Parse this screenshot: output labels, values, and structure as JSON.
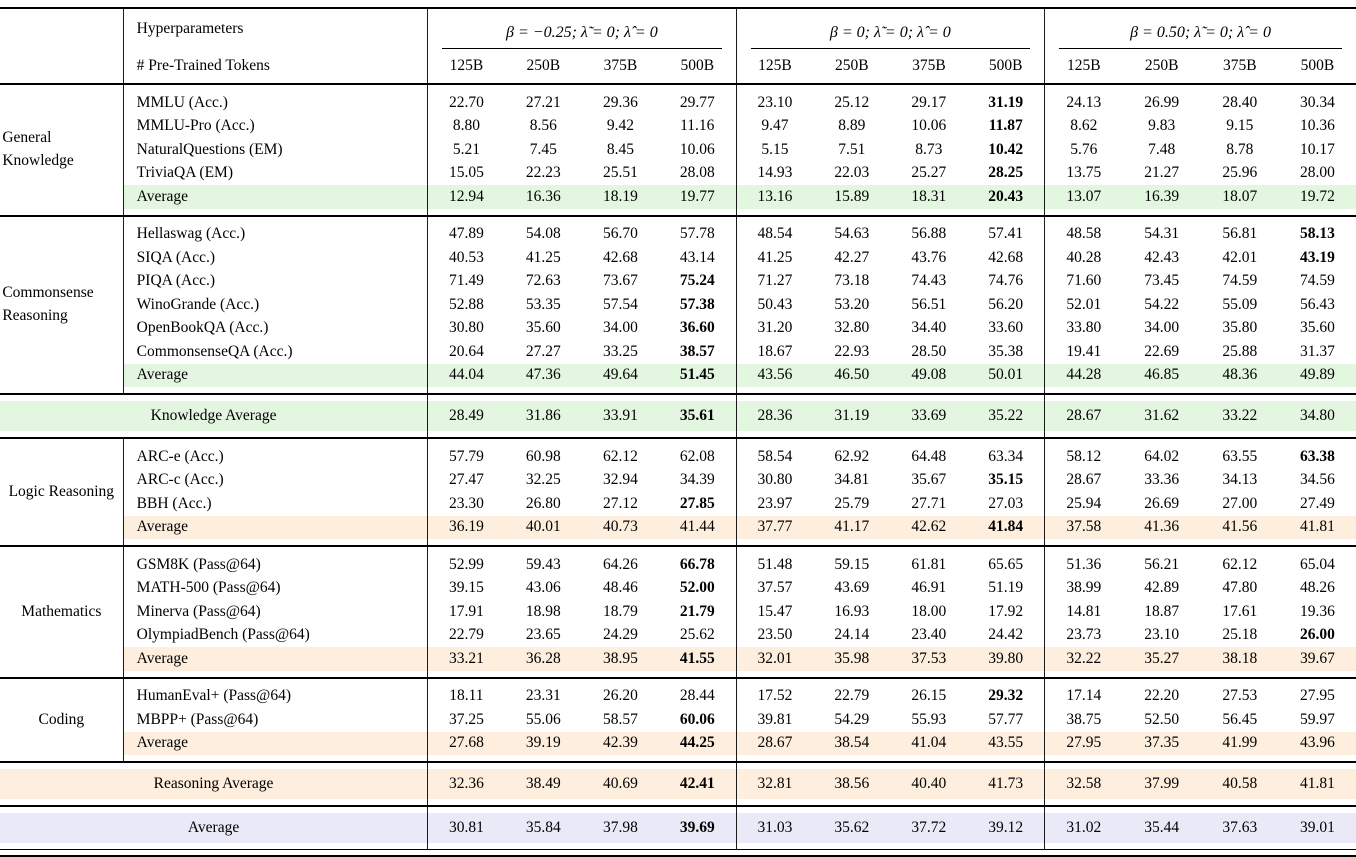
{
  "header": {
    "hyperparameters_label": "Hyperparameters",
    "tokens_label": "# Pre-Trained Tokens",
    "groups": [
      "β = −0.25;  λ̃ = 0;  λ̂ = 0",
      "β = 0;  λ̃ = 0;  λ̂ = 0",
      "β = 0.50;  λ̃ = 0;  λ̂ = 0"
    ],
    "token_columns": [
      "125B",
      "250B",
      "375B",
      "500B"
    ]
  },
  "colors": {
    "knowledge_highlight": "#e3f6e0",
    "reasoning_highlight": "#fdeedd",
    "overall_highlight": "#e9e9f8"
  },
  "blocks": [
    {
      "type": "section",
      "group": "General Knowledge",
      "rows": [
        {
          "name": "MMLU (Acc.)",
          "values": [
            "22.70",
            "27.21",
            "29.36",
            "29.77",
            "23.10",
            "25.12",
            "29.17",
            "31.19",
            "24.13",
            "26.99",
            "28.40",
            "30.34"
          ],
          "bold": [
            7
          ]
        },
        {
          "name": "MMLU-Pro (Acc.)",
          "values": [
            "8.80",
            "8.56",
            "9.42",
            "11.16",
            "9.47",
            "8.89",
            "10.06",
            "11.87",
            "8.62",
            "9.83",
            "9.15",
            "10.36"
          ],
          "bold": [
            7
          ]
        },
        {
          "name": "NaturalQuestions (EM)",
          "values": [
            "5.21",
            "7.45",
            "8.45",
            "10.06",
            "5.15",
            "7.51",
            "8.73",
            "10.42",
            "5.76",
            "7.48",
            "8.78",
            "10.17"
          ],
          "bold": [
            7
          ]
        },
        {
          "name": "TriviaQA (EM)",
          "values": [
            "15.05",
            "22.23",
            "25.51",
            "28.08",
            "14.93",
            "22.03",
            "25.27",
            "28.25",
            "13.75",
            "21.27",
            "25.96",
            "28.00"
          ],
          "bold": [
            7
          ]
        },
        {
          "name": "Average",
          "values": [
            "12.94",
            "16.36",
            "18.19",
            "19.77",
            "13.16",
            "15.89",
            "18.31",
            "20.43",
            "13.07",
            "16.39",
            "18.07",
            "19.72"
          ],
          "bold": [
            7
          ],
          "highlight": "green"
        }
      ]
    },
    {
      "type": "section",
      "group": "Commonsense Reasoning",
      "rows": [
        {
          "name": "Hellaswag (Acc.)",
          "values": [
            "47.89",
            "54.08",
            "56.70",
            "57.78",
            "48.54",
            "54.63",
            "56.88",
            "57.41",
            "48.58",
            "54.31",
            "56.81",
            "58.13"
          ],
          "bold": [
            11
          ]
        },
        {
          "name": "SIQA (Acc.)",
          "values": [
            "40.53",
            "41.25",
            "42.68",
            "43.14",
            "41.25",
            "42.27",
            "43.76",
            "42.68",
            "40.28",
            "42.43",
            "42.01",
            "43.19"
          ],
          "bold": [
            11
          ]
        },
        {
          "name": "PIQA (Acc.)",
          "values": [
            "71.49",
            "72.63",
            "73.67",
            "75.24",
            "71.27",
            "73.18",
            "74.43",
            "74.76",
            "71.60",
            "73.45",
            "74.59",
            "74.59"
          ],
          "bold": [
            3
          ]
        },
        {
          "name": "WinoGrande (Acc.)",
          "values": [
            "52.88",
            "53.35",
            "57.54",
            "57.38",
            "50.43",
            "53.20",
            "56.51",
            "56.20",
            "52.01",
            "54.22",
            "55.09",
            "56.43"
          ],
          "bold": [
            3
          ]
        },
        {
          "name": "OpenBookQA (Acc.)",
          "values": [
            "30.80",
            "35.60",
            "34.00",
            "36.60",
            "31.20",
            "32.80",
            "34.40",
            "33.60",
            "33.80",
            "34.00",
            "35.80",
            "35.60"
          ],
          "bold": [
            3
          ]
        },
        {
          "name": "CommonsenseQA (Acc.)",
          "values": [
            "20.64",
            "27.27",
            "33.25",
            "38.57",
            "18.67",
            "22.93",
            "28.50",
            "35.38",
            "19.41",
            "22.69",
            "25.88",
            "31.37"
          ],
          "bold": [
            3
          ]
        },
        {
          "name": "Average",
          "values": [
            "44.04",
            "47.36",
            "49.64",
            "51.45",
            "43.56",
            "46.50",
            "49.08",
            "50.01",
            "44.28",
            "46.85",
            "48.36",
            "49.89"
          ],
          "bold": [
            3
          ],
          "highlight": "green"
        }
      ]
    },
    {
      "type": "band",
      "label": "Knowledge Average",
      "highlight": "green",
      "values": [
        "28.49",
        "31.86",
        "33.91",
        "35.61",
        "28.36",
        "31.19",
        "33.69",
        "35.22",
        "28.67",
        "31.62",
        "33.22",
        "34.80"
      ],
      "bold": [
        3
      ]
    },
    {
      "type": "section",
      "group": "Logic Reasoning",
      "rows": [
        {
          "name": "ARC-e (Acc.)",
          "values": [
            "57.79",
            "60.98",
            "62.12",
            "62.08",
            "58.54",
            "62.92",
            "64.48",
            "63.34",
            "58.12",
            "64.02",
            "63.55",
            "63.38"
          ],
          "bold": [
            11
          ]
        },
        {
          "name": "ARC-c (Acc.)",
          "values": [
            "27.47",
            "32.25",
            "32.94",
            "34.39",
            "30.80",
            "34.81",
            "35.67",
            "35.15",
            "28.67",
            "33.36",
            "34.13",
            "34.56"
          ],
          "bold": [
            7
          ]
        },
        {
          "name": "BBH (Acc.)",
          "values": [
            "23.30",
            "26.80",
            "27.12",
            "27.85",
            "23.97",
            "25.79",
            "27.71",
            "27.03",
            "25.94",
            "26.69",
            "27.00",
            "27.49"
          ],
          "bold": [
            3
          ]
        },
        {
          "name": "Average",
          "values": [
            "36.19",
            "40.01",
            "40.73",
            "41.44",
            "37.77",
            "41.17",
            "42.62",
            "41.84",
            "37.58",
            "41.36",
            "41.56",
            "41.81"
          ],
          "bold": [
            7
          ],
          "highlight": "orange"
        }
      ]
    },
    {
      "type": "section",
      "group": "Mathematics",
      "rows": [
        {
          "name": "GSM8K (Pass@64)",
          "values": [
            "52.99",
            "59.43",
            "64.26",
            "66.78",
            "51.48",
            "59.15",
            "61.81",
            "65.65",
            "51.36",
            "56.21",
            "62.12",
            "65.04"
          ],
          "bold": [
            3
          ]
        },
        {
          "name": "MATH-500 (Pass@64)",
          "values": [
            "39.15",
            "43.06",
            "48.46",
            "52.00",
            "37.57",
            "43.69",
            "46.91",
            "51.19",
            "38.99",
            "42.89",
            "47.80",
            "48.26"
          ],
          "bold": [
            3
          ]
        },
        {
          "name": "Minerva (Pass@64)",
          "values": [
            "17.91",
            "18.98",
            "18.79",
            "21.79",
            "15.47",
            "16.93",
            "18.00",
            "17.92",
            "14.81",
            "18.87",
            "17.61",
            "19.36"
          ],
          "bold": [
            3
          ]
        },
        {
          "name": "OlympiadBench (Pass@64)",
          "values": [
            "22.79",
            "23.65",
            "24.29",
            "25.62",
            "23.50",
            "24.14",
            "23.40",
            "24.42",
            "23.73",
            "23.10",
            "25.18",
            "26.00"
          ],
          "bold": [
            11
          ]
        },
        {
          "name": "Average",
          "values": [
            "33.21",
            "36.28",
            "38.95",
            "41.55",
            "32.01",
            "35.98",
            "37.53",
            "39.80",
            "32.22",
            "35.27",
            "38.18",
            "39.67"
          ],
          "bold": [
            3
          ],
          "highlight": "orange"
        }
      ]
    },
    {
      "type": "section",
      "group": "Coding",
      "rows": [
        {
          "name": "HumanEval+ (Pass@64)",
          "values": [
            "18.11",
            "23.31",
            "26.20",
            "28.44",
            "17.52",
            "22.79",
            "26.15",
            "29.32",
            "17.14",
            "22.20",
            "27.53",
            "27.95"
          ],
          "bold": [
            7
          ]
        },
        {
          "name": "MBPP+ (Pass@64)",
          "values": [
            "37.25",
            "55.06",
            "58.57",
            "60.06",
            "39.81",
            "54.29",
            "55.93",
            "57.77",
            "38.75",
            "52.50",
            "56.45",
            "59.97"
          ],
          "bold": [
            3
          ]
        },
        {
          "name": "Average",
          "values": [
            "27.68",
            "39.19",
            "42.39",
            "44.25",
            "28.67",
            "38.54",
            "41.04",
            "43.55",
            "27.95",
            "37.35",
            "41.99",
            "43.96"
          ],
          "bold": [
            3
          ],
          "highlight": "orange"
        }
      ]
    },
    {
      "type": "band",
      "label": "Reasoning Average",
      "highlight": "orange",
      "values": [
        "32.36",
        "38.49",
        "40.69",
        "42.41",
        "32.81",
        "38.56",
        "40.40",
        "41.73",
        "32.58",
        "37.99",
        "40.58",
        "41.81"
      ],
      "bold": [
        3
      ]
    },
    {
      "type": "band",
      "label": "Average",
      "highlight": "blue",
      "values": [
        "30.81",
        "35.84",
        "37.98",
        "39.69",
        "31.03",
        "35.62",
        "37.72",
        "39.12",
        "31.02",
        "35.44",
        "37.63",
        "39.01"
      ],
      "bold": [
        3
      ]
    }
  ]
}
